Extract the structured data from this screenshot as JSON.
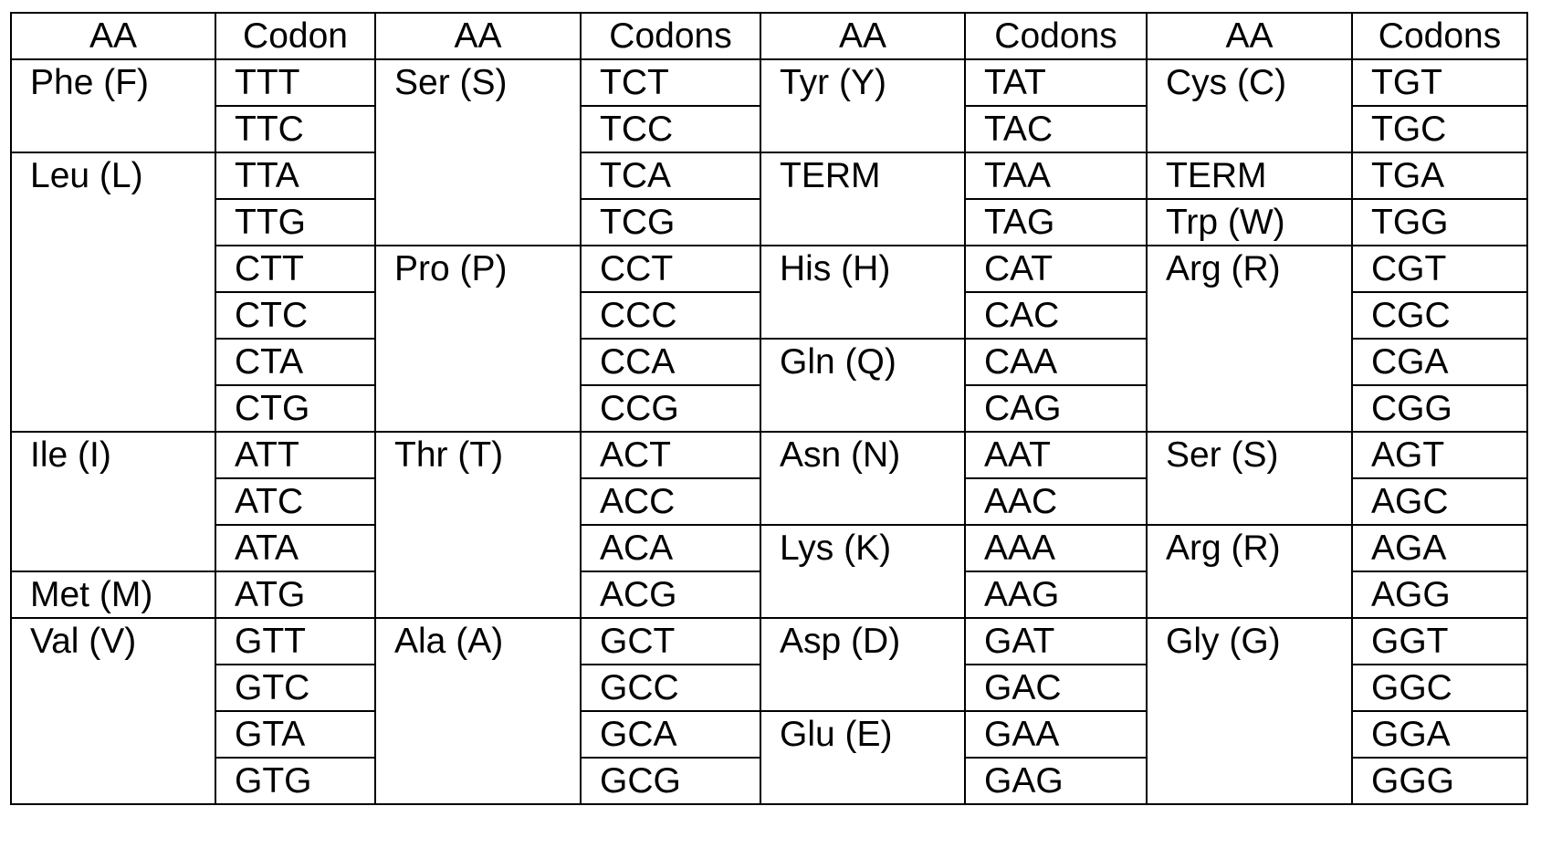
{
  "table": {
    "header": [
      "AA",
      "Codon",
      "AA",
      "Codons",
      "AA",
      "Codons",
      "AA",
      "Codons"
    ],
    "groups": [
      [
        {
          "aa": "Phe (F)",
          "codons": [
            "TTT",
            "TTC"
          ]
        },
        {
          "aa": "Leu (L)",
          "codons": [
            "TTA",
            "TTG",
            "CTT",
            "CTC",
            "CTA",
            "CTG"
          ]
        },
        {
          "aa": "Ile (I)",
          "codons": [
            "ATT",
            "ATC",
            "ATA"
          ]
        },
        {
          "aa": "Met (M)",
          "codons": [
            "ATG"
          ]
        },
        {
          "aa": "Val (V)",
          "codons": [
            "GTT",
            "GTC",
            "GTA",
            "GTG"
          ]
        }
      ],
      [
        {
          "aa": "Ser (S)",
          "codons": [
            "TCT",
            "TCC",
            "TCA",
            "TCG"
          ]
        },
        {
          "aa": "Pro (P)",
          "codons": [
            "CCT",
            "CCC",
            "CCA",
            "CCG"
          ]
        },
        {
          "aa": "Thr (T)",
          "codons": [
            "ACT",
            "ACC",
            "ACA",
            "ACG"
          ]
        },
        {
          "aa": "Ala (A)",
          "codons": [
            "GCT",
            "GCC",
            "GCA",
            "GCG"
          ]
        }
      ],
      [
        {
          "aa": "Tyr (Y)",
          "codons": [
            "TAT",
            "TAC"
          ]
        },
        {
          "aa": "TERM",
          "codons": [
            "TAA",
            "TAG"
          ]
        },
        {
          "aa": "His (H)",
          "codons": [
            "CAT",
            "CAC"
          ]
        },
        {
          "aa": "Gln (Q)",
          "codons": [
            "CAA",
            "CAG"
          ]
        },
        {
          "aa": "Asn (N)",
          "codons": [
            "AAT",
            "AAC"
          ]
        },
        {
          "aa": "Lys (K)",
          "codons": [
            "AAA",
            "AAG"
          ]
        },
        {
          "aa": "Asp (D)",
          "codons": [
            "GAT",
            "GAC"
          ]
        },
        {
          "aa": "Glu (E)",
          "codons": [
            "GAA",
            "GAG"
          ]
        }
      ],
      [
        {
          "aa": "Cys (C)",
          "codons": [
            "TGT",
            "TGC"
          ]
        },
        {
          "aa": "TERM",
          "codons": [
            "TGA"
          ]
        },
        {
          "aa": "Trp (W)",
          "codons": [
            "TGG"
          ]
        },
        {
          "aa": "Arg (R)",
          "codons": [
            "CGT",
            "CGC",
            "CGA",
            "CGG"
          ]
        },
        {
          "aa": "Ser (S)",
          "codons": [
            "AGT",
            "AGC"
          ]
        },
        {
          "aa": "Arg (R)",
          "codons": [
            "AGA",
            "AGG"
          ]
        },
        {
          "aa": "Gly (G)",
          "codons": [
            "GGT",
            "GGC",
            "GGA",
            "GGG"
          ]
        }
      ]
    ]
  }
}
